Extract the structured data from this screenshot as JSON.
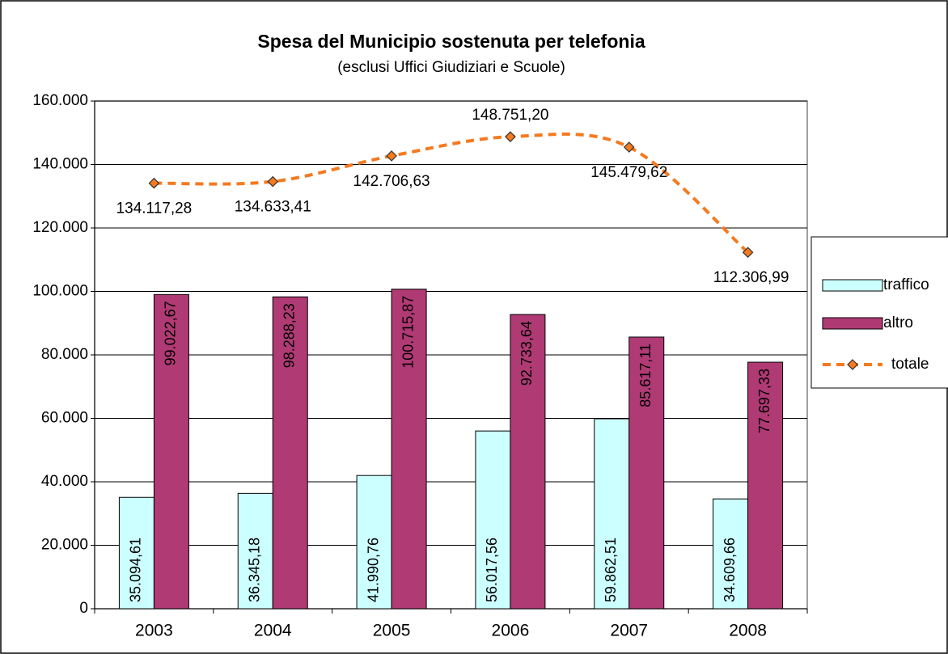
{
  "chart_data": {
    "type": "bar",
    "title": "Spesa del Municipio sostenuta per telefonia",
    "subtitle": "(esclusi Uffici Giudiziari e Scuole)",
    "categories": [
      "2003",
      "2004",
      "2005",
      "2006",
      "2007",
      "2008"
    ],
    "series": [
      {
        "name": "traffico",
        "type": "bar",
        "color": "#ccffff",
        "values": [
          35094.61,
          36345.18,
          41990.76,
          56017.56,
          59862.51,
          34609.66
        ],
        "value_labels": [
          "35.094,61",
          "36.345,18",
          "41.990,76",
          "56.017,56",
          "59.862,51",
          "34.609,66"
        ]
      },
      {
        "name": "altro",
        "type": "bar",
        "color": "#b03a74",
        "values": [
          99022.67,
          98288.23,
          100715.87,
          92733.64,
          85617.11,
          77697.33
        ],
        "value_labels": [
          "99.022,67",
          "98.288,23",
          "100.715,87",
          "92.733,64",
          "85.617,11",
          "77.697,33"
        ]
      },
      {
        "name": "totale",
        "type": "line",
        "color": "#f47a20",
        "values": [
          134117.28,
          134633.41,
          142706.63,
          148751.2,
          145479.62,
          112306.99
        ],
        "value_labels": [
          "134.117,28",
          "134.633,41",
          "142.706,63",
          "148.751,20",
          "145.479,62",
          "112.306,99"
        ]
      }
    ],
    "ylim": [
      0,
      160000
    ],
    "yticks": [
      0,
      {
        "value": 20000,
        "label": "20.000"
      },
      {
        "value": 40000,
        "label": "40.000"
      },
      {
        "value": 60000,
        "label": "60.000"
      },
      {
        "value": 80000,
        "label": "80.000"
      },
      {
        "value": 100000,
        "label": "100.000"
      },
      {
        "value": 120000,
        "label": "120.000"
      },
      {
        "value": 140000,
        "label": "140.000"
      },
      {
        "value": 160000,
        "label": "160.000"
      }
    ],
    "grid": true,
    "legend": "right"
  }
}
